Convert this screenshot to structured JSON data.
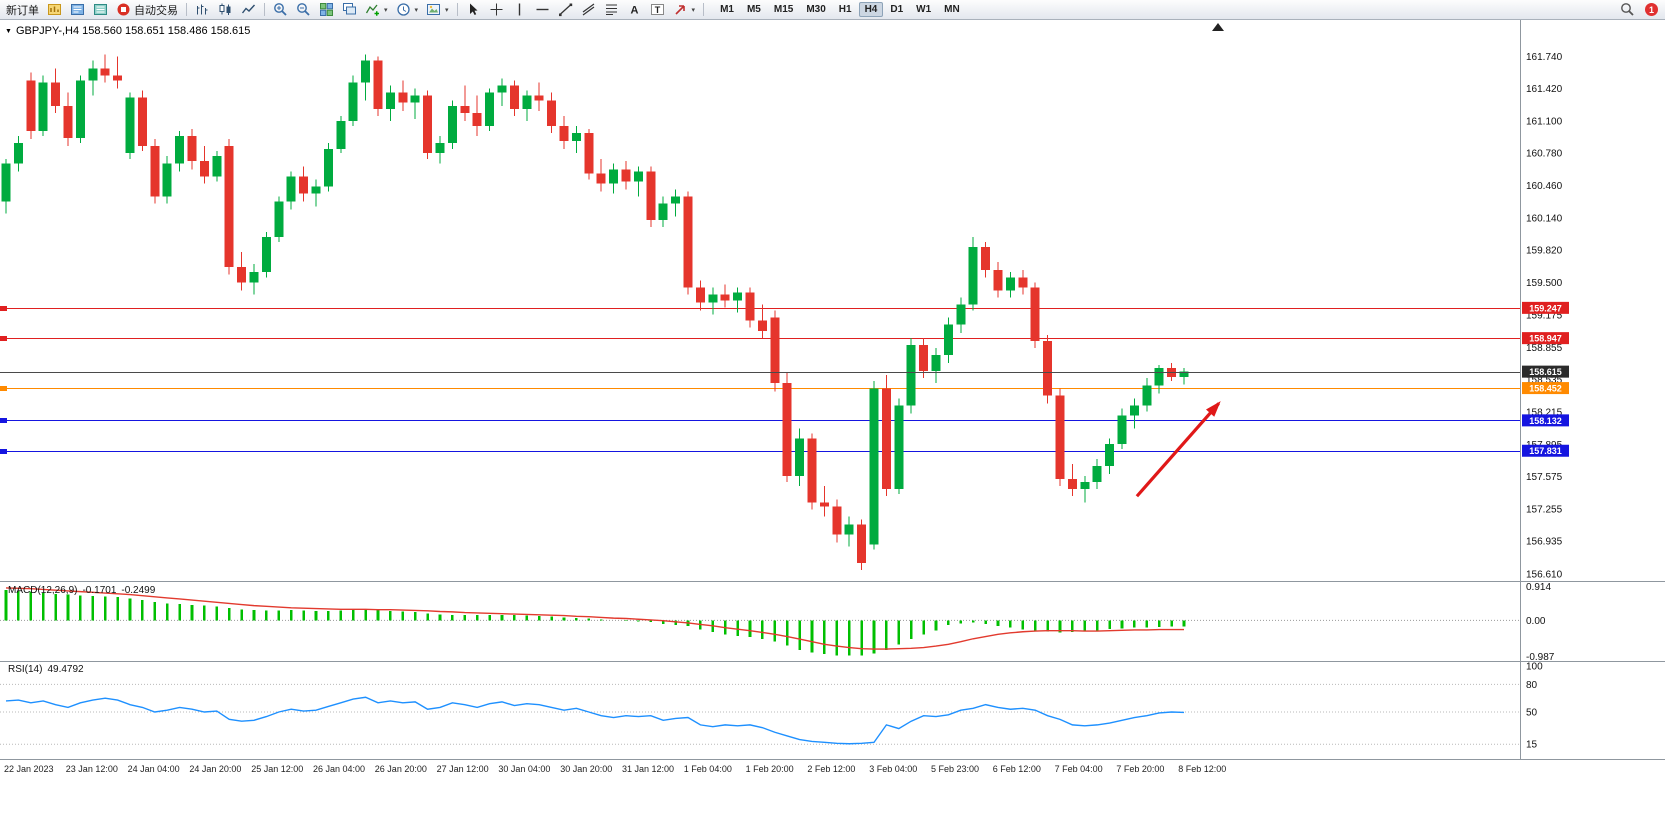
{
  "toolbar": {
    "new_order": "新订单",
    "auto_trading": "自动交易",
    "timeframes": [
      "M1",
      "M5",
      "M15",
      "M30",
      "H1",
      "H4",
      "D1",
      "W1",
      "MN"
    ],
    "active_timeframe": "H4",
    "notification_count": "1",
    "icon_names": [
      "charts-profile-icon",
      "market-watch-icon",
      "data-window-icon",
      "auto-trading-icon",
      "bar-chart-icon",
      "candlestick-chart-icon",
      "line-chart-icon",
      "zoom-in-icon",
      "zoom-out-icon",
      "tile-windows-icon",
      "cascade-windows-icon",
      "indicators-icon",
      "periods-icon",
      "templates-icon",
      "cursor-icon",
      "crosshair-icon",
      "vertical-line-icon",
      "horizontal-line-icon",
      "trendline-icon",
      "channel-icon",
      "fibonacci-icon",
      "text-icon",
      "text-label-icon",
      "arrows-icon",
      "search-icon",
      "notification-badge"
    ]
  },
  "chart_data": {
    "type": "candlestick",
    "symbol": "GBPJPY-",
    "timeframe": "H4",
    "title": "GBPJPY-,H4  158.560 158.651 158.486 158.615",
    "ohlc_display": {
      "open": "158.560",
      "high": "158.651",
      "low": "158.486",
      "close": "158.615"
    },
    "colors": {
      "bull": "#00ab3f",
      "bear": "#e5352c",
      "macd_hist": "#00bf00",
      "macd_signal": "#e23a2e",
      "rsi_line": "#1e90ff",
      "line_red": "#e02020",
      "line_blue": "#1515e0",
      "line_orange": "#ff8a00",
      "price_line": "#4a4a4a",
      "price_badge": "#2b2b2b",
      "arrow": "#e01818"
    },
    "y_ticks": [
      "161.740",
      "161.420",
      "161.100",
      "160.780",
      "160.460",
      "160.140",
      "159.820",
      "159.500",
      "159.175",
      "158.855",
      "158.535",
      "158.215",
      "157.895",
      "157.575",
      "157.255",
      "156.935",
      "156.610"
    ],
    "x_labels": [
      "22 Jan 2023",
      "23 Jan 12:00",
      "24 Jan 04:00",
      "24 Jan 20:00",
      "25 Jan 12:00",
      "26 Jan 04:00",
      "26 Jan 20:00",
      "27 Jan 12:00",
      "30 Jan 04:00",
      "30 Jan 20:00",
      "31 Jan 12:00",
      "1 Feb 04:00",
      "1 Feb 20:00",
      "2 Feb 12:00",
      "3 Feb 04:00",
      "5 Feb 23:00",
      "6 Feb 12:00",
      "7 Feb 04:00",
      "7 Feb 20:00",
      "8 Feb 12:00"
    ],
    "hlines": [
      {
        "price": 159.247,
        "label": "159.247",
        "color": "#e02020",
        "main": false
      },
      {
        "price": 158.947,
        "label": "158.947",
        "color": "#e02020",
        "main": false
      },
      {
        "price": 158.452,
        "label": "158.452",
        "color": "#ff8a00",
        "main": false
      },
      {
        "price": 158.132,
        "label": "158.132",
        "color": "#1515e0",
        "main": false
      },
      {
        "price": 157.831,
        "label": "157.831",
        "color": "#1515e0",
        "main": false
      },
      {
        "price": 158.615,
        "label": "158.615",
        "color": "#4a4a4a",
        "main": true
      }
    ],
    "arrow": {
      "from_index": 91.2,
      "from_price": 157.38,
      "to_index": 97.8,
      "to_price": 158.3
    },
    "candles": [
      [
        160.3,
        160.72,
        160.18,
        160.68
      ],
      [
        160.68,
        160.95,
        160.6,
        160.88
      ],
      [
        161.5,
        161.58,
        160.92,
        161.0
      ],
      [
        161.0,
        161.55,
        160.95,
        161.48
      ],
      [
        161.48,
        161.62,
        161.18,
        161.25
      ],
      [
        161.25,
        161.38,
        160.85,
        160.93
      ],
      [
        160.93,
        161.55,
        160.88,
        161.5
      ],
      [
        161.5,
        161.7,
        161.35,
        161.62
      ],
      [
        161.62,
        161.76,
        161.48,
        161.55
      ],
      [
        161.55,
        161.74,
        161.42,
        161.5
      ],
      [
        160.78,
        161.38,
        160.72,
        161.33
      ],
      [
        161.33,
        161.4,
        160.8,
        160.85
      ],
      [
        160.85,
        160.92,
        160.28,
        160.35
      ],
      [
        160.35,
        160.75,
        160.28,
        160.68
      ],
      [
        160.68,
        161.0,
        160.6,
        160.95
      ],
      [
        160.95,
        161.02,
        160.62,
        160.7
      ],
      [
        160.7,
        160.85,
        160.48,
        160.55
      ],
      [
        160.55,
        160.8,
        160.5,
        160.75
      ],
      [
        160.85,
        160.92,
        159.58,
        159.65
      ],
      [
        159.65,
        159.8,
        159.42,
        159.5
      ],
      [
        159.5,
        159.68,
        159.38,
        159.6
      ],
      [
        159.6,
        160.0,
        159.55,
        159.95
      ],
      [
        159.95,
        160.35,
        159.9,
        160.3
      ],
      [
        160.3,
        160.6,
        160.22,
        160.55
      ],
      [
        160.55,
        160.65,
        160.3,
        160.38
      ],
      [
        160.38,
        160.52,
        160.25,
        160.45
      ],
      [
        160.45,
        160.88,
        160.4,
        160.82
      ],
      [
        160.82,
        161.15,
        160.78,
        161.1
      ],
      [
        161.1,
        161.55,
        161.05,
        161.48
      ],
      [
        161.48,
        161.76,
        161.3,
        161.7
      ],
      [
        161.7,
        161.74,
        161.15,
        161.22
      ],
      [
        161.22,
        161.45,
        161.1,
        161.38
      ],
      [
        161.38,
        161.5,
        161.2,
        161.28
      ],
      [
        161.28,
        161.42,
        161.12,
        161.35
      ],
      [
        161.35,
        161.4,
        160.72,
        160.78
      ],
      [
        160.78,
        160.95,
        160.68,
        160.88
      ],
      [
        160.88,
        161.3,
        160.82,
        161.25
      ],
      [
        161.25,
        161.45,
        161.1,
        161.18
      ],
      [
        161.18,
        161.35,
        160.95,
        161.05
      ],
      [
        161.05,
        161.42,
        161.0,
        161.38
      ],
      [
        161.38,
        161.52,
        161.25,
        161.45
      ],
      [
        161.45,
        161.5,
        161.15,
        161.22
      ],
      [
        161.22,
        161.4,
        161.1,
        161.35
      ],
      [
        161.35,
        161.48,
        161.2,
        161.3
      ],
      [
        161.3,
        161.38,
        160.98,
        161.05
      ],
      [
        161.05,
        161.15,
        160.82,
        160.9
      ],
      [
        160.9,
        161.05,
        160.78,
        160.98
      ],
      [
        160.98,
        161.02,
        160.52,
        160.58
      ],
      [
        160.58,
        160.72,
        160.4,
        160.48
      ],
      [
        160.48,
        160.68,
        160.38,
        160.62
      ],
      [
        160.62,
        160.7,
        160.42,
        160.5
      ],
      [
        160.5,
        160.65,
        160.35,
        160.6
      ],
      [
        160.6,
        160.65,
        160.05,
        160.12
      ],
      [
        160.12,
        160.35,
        160.05,
        160.28
      ],
      [
        160.28,
        160.42,
        160.15,
        160.35
      ],
      [
        160.35,
        160.4,
        159.38,
        159.45
      ],
      [
        159.45,
        159.52,
        159.22,
        159.3
      ],
      [
        159.3,
        159.45,
        159.18,
        159.38
      ],
      [
        159.38,
        159.48,
        159.25,
        159.32
      ],
      [
        159.32,
        159.45,
        159.2,
        159.4
      ],
      [
        159.4,
        159.45,
        159.05,
        159.12
      ],
      [
        159.12,
        159.28,
        158.95,
        159.02
      ],
      [
        159.15,
        159.22,
        158.42,
        158.5
      ],
      [
        158.5,
        158.6,
        157.52,
        157.58
      ],
      [
        157.58,
        158.05,
        157.48,
        157.95
      ],
      [
        157.95,
        158.0,
        157.25,
        157.32
      ],
      [
        157.32,
        157.48,
        157.18,
        157.28
      ],
      [
        157.28,
        157.35,
        156.92,
        157.0
      ],
      [
        157.0,
        157.18,
        156.88,
        157.1
      ],
      [
        157.1,
        157.15,
        156.65,
        156.72
      ],
      [
        156.9,
        158.52,
        156.85,
        158.45
      ],
      [
        158.45,
        158.58,
        157.38,
        157.45
      ],
      [
        157.45,
        158.35,
        157.4,
        158.28
      ],
      [
        158.28,
        158.95,
        158.2,
        158.88
      ],
      [
        158.88,
        158.95,
        158.55,
        158.62
      ],
      [
        158.62,
        158.85,
        158.5,
        158.78
      ],
      [
        158.78,
        159.15,
        158.7,
        159.08
      ],
      [
        159.08,
        159.35,
        159.0,
        159.28
      ],
      [
        159.28,
        159.95,
        159.22,
        159.85
      ],
      [
        159.85,
        159.9,
        159.55,
        159.62
      ],
      [
        159.62,
        159.7,
        159.35,
        159.42
      ],
      [
        159.42,
        159.6,
        159.35,
        159.55
      ],
      [
        159.55,
        159.62,
        159.38,
        159.45
      ],
      [
        159.45,
        159.5,
        158.85,
        158.92
      ],
      [
        158.92,
        158.98,
        158.3,
        158.38
      ],
      [
        158.38,
        158.45,
        157.48,
        157.55
      ],
      [
        157.55,
        157.7,
        157.38,
        157.45
      ],
      [
        157.45,
        157.58,
        157.32,
        157.52
      ],
      [
        157.52,
        157.75,
        157.45,
        157.68
      ],
      [
        157.68,
        157.95,
        157.6,
        157.9
      ],
      [
        157.9,
        158.25,
        157.85,
        158.18
      ],
      [
        158.18,
        158.35,
        158.05,
        158.28
      ],
      [
        158.28,
        158.55,
        158.22,
        158.48
      ],
      [
        158.48,
        158.68,
        158.4,
        158.65
      ],
      [
        158.65,
        158.7,
        158.52,
        158.56
      ],
      [
        158.56,
        158.651,
        158.486,
        158.615
      ]
    ],
    "macd": {
      "label": "MACD(12,26,9)",
      "value": "-0.1701",
      "signal_value": "-0.2499",
      "scale_labels": [
        "0.914",
        "0.00",
        "-0.987"
      ],
      "hist": [
        0.82,
        0.8,
        0.78,
        0.75,
        0.72,
        0.7,
        0.68,
        0.66,
        0.65,
        0.63,
        0.6,
        0.55,
        0.5,
        0.46,
        0.44,
        0.42,
        0.4,
        0.38,
        0.34,
        0.3,
        0.28,
        0.27,
        0.27,
        0.28,
        0.27,
        0.26,
        0.26,
        0.27,
        0.28,
        0.3,
        0.28,
        0.26,
        0.24,
        0.22,
        0.18,
        0.16,
        0.15,
        0.15,
        0.14,
        0.14,
        0.15,
        0.14,
        0.13,
        0.12,
        0.1,
        0.08,
        0.07,
        0.05,
        0.02,
        0.0,
        -0.02,
        -0.03,
        -0.05,
        -0.1,
        -0.12,
        -0.15,
        -0.25,
        -0.32,
        -0.38,
        -0.42,
        -0.45,
        -0.5,
        -0.58,
        -0.68,
        -0.8,
        -0.88,
        -0.92,
        -0.95,
        -0.96,
        -0.95,
        -0.9,
        -0.8,
        -0.65,
        -0.5,
        -0.38,
        -0.28,
        -0.12,
        -0.08,
        -0.06,
        -0.1,
        -0.15,
        -0.2,
        -0.25,
        -0.28,
        -0.3,
        -0.33,
        -0.32,
        -0.3,
        -0.27,
        -0.24,
        -0.22,
        -0.2,
        -0.19,
        -0.18,
        -0.17,
        -0.17
      ],
      "signal": [
        0.88,
        0.87,
        0.86,
        0.84,
        0.82,
        0.8,
        0.78,
        0.76,
        0.74,
        0.72,
        0.7,
        0.67,
        0.64,
        0.61,
        0.58,
        0.55,
        0.52,
        0.49,
        0.46,
        0.43,
        0.4,
        0.38,
        0.36,
        0.34,
        0.33,
        0.32,
        0.31,
        0.3,
        0.3,
        0.3,
        0.29,
        0.29,
        0.28,
        0.27,
        0.26,
        0.24,
        0.23,
        0.21,
        0.2,
        0.19,
        0.18,
        0.17,
        0.16,
        0.15,
        0.14,
        0.13,
        0.11,
        0.1,
        0.08,
        0.06,
        0.05,
        0.03,
        0.01,
        -0.01,
        -0.04,
        -0.07,
        -0.11,
        -0.15,
        -0.2,
        -0.24,
        -0.28,
        -0.33,
        -0.38,
        -0.44,
        -0.51,
        -0.58,
        -0.65,
        -0.7,
        -0.74,
        -0.77,
        -0.78,
        -0.78,
        -0.77,
        -0.76,
        -0.74,
        -0.7,
        -0.65,
        -0.58,
        -0.5,
        -0.44,
        -0.38,
        -0.34,
        -0.31,
        -0.29,
        -0.28,
        -0.28,
        -0.28,
        -0.29,
        -0.29,
        -0.28,
        -0.27,
        -0.26,
        -0.26,
        -0.25,
        -0.25,
        -0.25
      ]
    },
    "rsi": {
      "label": "RSI(14)",
      "value": "49.4792",
      "levels": [
        100,
        80,
        50,
        15
      ],
      "values": [
        62,
        63,
        60,
        62,
        58,
        55,
        60,
        63,
        65,
        63,
        58,
        55,
        50,
        52,
        55,
        53,
        50,
        51,
        42,
        40,
        41,
        45,
        50,
        53,
        51,
        52,
        56,
        60,
        64,
        66,
        60,
        62,
        60,
        61,
        53,
        55,
        60,
        58,
        55,
        59,
        61,
        57,
        59,
        58,
        55,
        52,
        54,
        50,
        46,
        44,
        46,
        45,
        46,
        41,
        43,
        44,
        36,
        34,
        36,
        35,
        36,
        33,
        28,
        24,
        20,
        18,
        17,
        16,
        15.5,
        16,
        17,
        36,
        32,
        40,
        46,
        45,
        47,
        52,
        54,
        58,
        55,
        53,
        54,
        52,
        46,
        42,
        36,
        35,
        36,
        38,
        41,
        44,
        46,
        49,
        50,
        49.48
      ]
    }
  }
}
